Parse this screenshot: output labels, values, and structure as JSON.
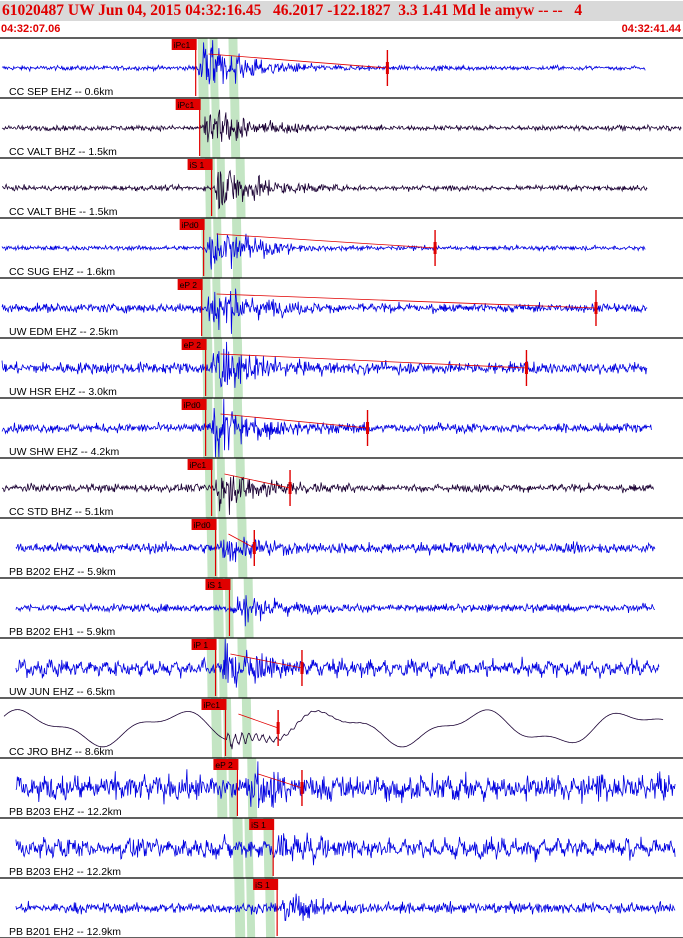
{
  "header": {
    "event_line": "61020487 UW Jun 04, 2015 04:32:16.45   46.2017 -122.1827  3.3 1.41 Md le amyw -- --   4",
    "start_time": "04:32:07.06",
    "end_time": "04:32:41.44"
  },
  "colors": {
    "trace_blue": "#0000e0",
    "trace_dark": "#1a0033",
    "pick_red": "#e00000",
    "band_green": "#b8e0b8",
    "axis_black": "#000000"
  },
  "chart_data": {
    "type": "line",
    "title": "61020487 UW Jun 04, 2015 04:32:16.45   46.2017 -122.1827  3.3 1.41 Md le amyw -- --   4",
    "x_range": [
      "04:32:07.06",
      "04:32:41.44"
    ],
    "x_range_seconds": [
      0,
      34.38
    ],
    "grid": false,
    "traces": [
      {
        "label": "CC SEP EHZ -- 0.6km",
        "pick": "iPc1",
        "pick_time_s": 9.8,
        "onset_s": 9.9,
        "end_s": 32.5,
        "coda_s": 19.5,
        "coda_marker_s": 19.5,
        "noise": 0.03,
        "amp": 0.9,
        "dark": false,
        "long_period": false
      },
      {
        "label": "CC VALT BHZ -- 1.5km",
        "pick": "iPc1",
        "pick_time_s": 10.0,
        "onset_s": 10.1,
        "end_s": 34.3,
        "coda_s": null,
        "coda_marker_s": null,
        "noise": 0.04,
        "amp": 0.8,
        "dark": true,
        "long_period": false
      },
      {
        "label": "CC VALT BHE -- 1.5km",
        "pick": "iS 1",
        "pick_time_s": 10.6,
        "onset_s": 10.7,
        "end_s": 32.6,
        "coda_s": null,
        "coda_marker_s": null,
        "noise": 0.04,
        "amp": 0.85,
        "dark": true,
        "long_period": false
      },
      {
        "label": "CC SUG EHZ -- 1.6km",
        "pick": "iPd0",
        "pick_time_s": 10.2,
        "onset_s": 10.3,
        "end_s": 32.5,
        "coda_s": 21.9,
        "coda_marker_s": 21.9,
        "noise": 0.03,
        "amp": 0.8,
        "dark": false,
        "long_period": false
      },
      {
        "label": "UW EDM EHZ -- 2.5km",
        "pick": "eP 2",
        "pick_time_s": 10.1,
        "onset_s": 10.3,
        "end_s": 32.6,
        "coda_s": 30.0,
        "coda_marker_s": 30.0,
        "noise": 0.1,
        "amp": 0.9,
        "dark": false,
        "long_period": false
      },
      {
        "label": "UW HSR EHZ -- 3.0km",
        "pick": "eP 2",
        "pick_time_s": 10.3,
        "onset_s": 10.5,
        "end_s": 32.6,
        "coda_s": 26.5,
        "coda_marker_s": 26.5,
        "noise": 0.14,
        "amp": 0.9,
        "dark": false,
        "long_period": false
      },
      {
        "label": "UW SHW EHZ -- 4.2km",
        "pick": "iPd0",
        "pick_time_s": 10.3,
        "onset_s": 10.5,
        "end_s": 32.8,
        "coda_s": 18.5,
        "coda_marker_s": 18.5,
        "noise": 0.1,
        "amp": 0.95,
        "dark": false,
        "long_period": false
      },
      {
        "label": "CC STD BHZ -- 5.1km",
        "pick": "iPc1",
        "pick_time_s": 10.6,
        "onset_s": 10.7,
        "end_s": 32.9,
        "coda_s": 14.6,
        "coda_marker_s": 14.6,
        "noise": 0.08,
        "amp": 0.8,
        "dark": true,
        "long_period": false
      },
      {
        "label": "PB B202 EHZ -- 5.9km",
        "pick": "iPd0",
        "pick_time_s": 10.8,
        "onset_s": 10.9,
        "end_s": 33.0,
        "coda_s": 12.8,
        "coda_marker_s": 12.8,
        "noise": 0.12,
        "amp": 0.55,
        "dark": false,
        "long_period": false
      },
      {
        "label": "PB B202 EH1 -- 5.9km",
        "pick": "iS 1",
        "pick_time_s": 11.5,
        "onset_s": 11.6,
        "end_s": 33.0,
        "coda_s": null,
        "coda_marker_s": null,
        "noise": 0.08,
        "amp": 0.6,
        "dark": false,
        "long_period": false
      },
      {
        "label": "UW JUN EHZ -- 6.5km",
        "pick": "iP 1",
        "pick_time_s": 10.8,
        "onset_s": 11.0,
        "end_s": 33.2,
        "coda_s": 15.2,
        "coda_marker_s": 15.2,
        "noise": 0.18,
        "amp": 0.9,
        "dark": false,
        "long_period": false
      },
      {
        "label": "CC JRO BHZ -- 8.6km",
        "pick": "iPc1",
        "pick_time_s": 11.3,
        "onset_s": 11.4,
        "end_s": 33.4,
        "coda_s": 14.0,
        "coda_marker_s": 14.0,
        "noise": 0.0,
        "amp": 0.3,
        "dark": true,
        "long_period": true
      },
      {
        "label": "PB B203 EHZ -- 12.2km",
        "pick": "eP 2",
        "pick_time_s": 11.9,
        "onset_s": 12.4,
        "end_s": 34.0,
        "coda_s": 15.2,
        "coda_marker_s": 15.2,
        "noise": 0.32,
        "amp": 0.7,
        "dark": false,
        "long_period": false
      },
      {
        "label": "PB B203 EH2 -- 12.2km",
        "pick": "iS 1",
        "pick_time_s": 13.7,
        "onset_s": 13.8,
        "end_s": 34.0,
        "coda_s": null,
        "coda_marker_s": null,
        "noise": 0.22,
        "amp": 0.6,
        "dark": false,
        "long_period": false
      },
      {
        "label": "PB B201 EH2 -- 12.9km",
        "pick": "iS 1",
        "pick_time_s": 13.9,
        "onset_s": 14.0,
        "end_s": 34.0,
        "coda_s": null,
        "coda_marker_s": null,
        "noise": 0.12,
        "amp": 0.5,
        "dark": false,
        "long_period": false
      }
    ]
  }
}
